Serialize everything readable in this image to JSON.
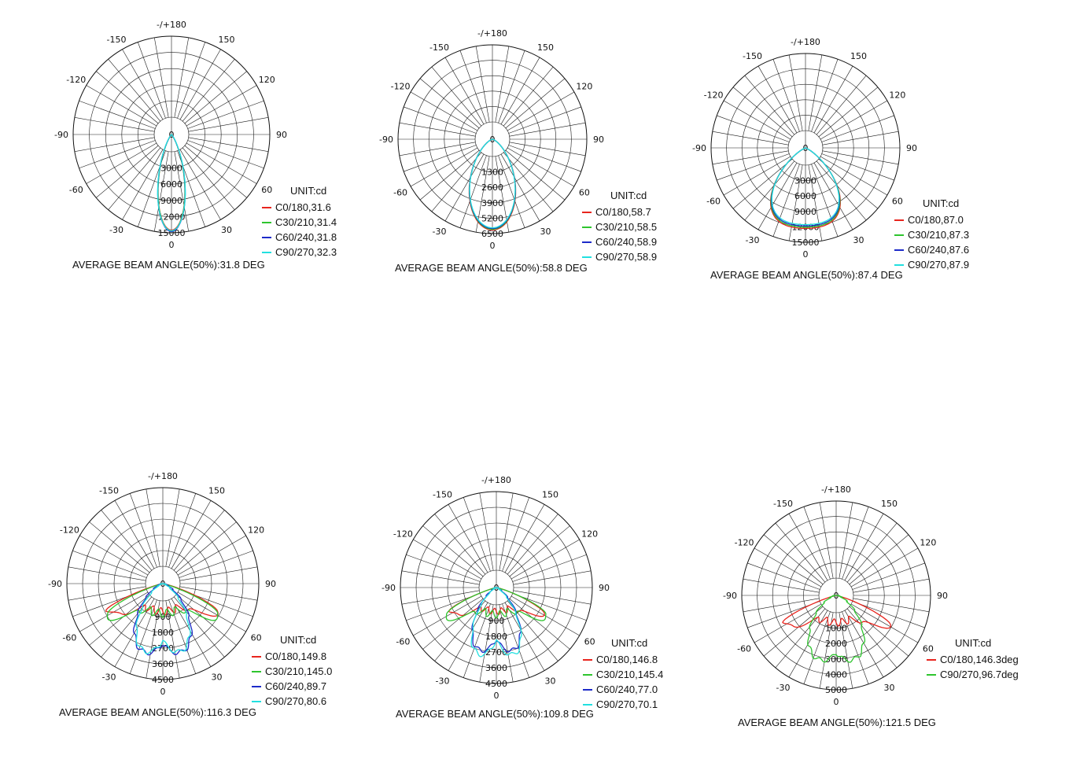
{
  "chart_data": [
    {
      "type": "polar",
      "angle_labels": [
        "-/+180",
        "150",
        "120",
        "90",
        "60",
        "30",
        "0",
        "-30",
        "-60",
        "-90",
        "-120",
        "-150"
      ],
      "zero_label": "0",
      "rmax": 15000,
      "ring_labels": [
        "3000",
        "6000",
        "9000",
        "12000",
        "15000"
      ],
      "unit": "UNIT:cd",
      "avg_beam": "AVERAGE BEAM ANGLE(50%):31.8 DEG",
      "series": [
        {
          "name": "C0/180,31.6",
          "color": "#e8251e",
          "peak": 14600,
          "profile": "narrow",
          "width": 31.6
        },
        {
          "name": "C30/210,31.4",
          "color": "#2ec52e",
          "peak": 14700,
          "profile": "narrow",
          "width": 31.4
        },
        {
          "name": "C60/240,31.8",
          "color": "#1d2bc9",
          "peak": 14800,
          "profile": "narrow",
          "width": 31.8
        },
        {
          "name": "C90/270,32.3",
          "color": "#22e0e0",
          "peak": 14700,
          "profile": "narrow",
          "width": 32.3
        }
      ]
    },
    {
      "type": "polar",
      "angle_labels": [
        "-/+180",
        "150",
        "120",
        "90",
        "60",
        "30",
        "0",
        "-30",
        "-60",
        "-90",
        "-120",
        "-150"
      ],
      "zero_label": "0",
      "rmax": 6500,
      "ring_labels": [
        "1300",
        "2600",
        "3900",
        "5200",
        "6500"
      ],
      "unit": "UNIT:cd",
      "avg_beam": "AVERAGE BEAM ANGLE(50%):58.8 DEG",
      "series": [
        {
          "name": "C0/180,58.7",
          "color": "#e8251e",
          "peak": 6250,
          "profile": "medium",
          "width": 58.7
        },
        {
          "name": "C30/210,58.5",
          "color": "#2ec52e",
          "peak": 6200,
          "profile": "medium",
          "width": 58.5
        },
        {
          "name": "C60/240,58.9",
          "color": "#1d2bc9",
          "peak": 6150,
          "profile": "medium",
          "width": 58.9
        },
        {
          "name": "C90/270,58.9",
          "color": "#22e0e0",
          "peak": 6100,
          "profile": "medium",
          "width": 58.9
        }
      ]
    },
    {
      "type": "polar",
      "angle_labels": [
        "-/+180",
        "150",
        "120",
        "90",
        "60",
        "30",
        "0",
        "-30",
        "-60",
        "-90",
        "-120",
        "-150"
      ],
      "zero_label": "0",
      "rmax": 15000,
      "ring_labels": [
        "3000",
        "6000",
        "9000",
        "12000",
        "15000"
      ],
      "unit": "UNIT:cd",
      "avg_beam": "AVERAGE BEAM ANGLE(50%):87.4 DEG",
      "series": [
        {
          "name": "C0/180,87.0",
          "color": "#e8251e",
          "peak": 12800,
          "profile": "wide",
          "width": 87.0
        },
        {
          "name": "C30/210,87.3",
          "color": "#2ec52e",
          "peak": 12600,
          "profile": "wide",
          "width": 87.3
        },
        {
          "name": "C60/240,87.6",
          "color": "#1d2bc9",
          "peak": 12400,
          "profile": "wide",
          "width": 87.6
        },
        {
          "name": "C90/270,87.9",
          "color": "#22e0e0",
          "peak": 12200,
          "profile": "wide",
          "width": 87.9
        }
      ]
    },
    {
      "type": "polar",
      "angle_labels": [
        "-/+180",
        "150",
        "120",
        "90",
        "60",
        "30",
        "0",
        "-30",
        "-60",
        "-90",
        "-120",
        "-150"
      ],
      "zero_label": "0",
      "rmax": 4500,
      "ring_labels": [
        "900",
        "1800",
        "2700",
        "3600",
        "4500"
      ],
      "unit": "UNIT:cd",
      "avg_beam": "AVERAGE BEAM ANGLE(50%):116.3 DEG",
      "series": [
        {
          "name": "C0/180,149.8",
          "color": "#e8251e",
          "peak": 2900,
          "profile": "bat",
          "width": 149.8
        },
        {
          "name": "C30/210,145.0",
          "color": "#2ec52e",
          "peak": 3100,
          "profile": "bat",
          "width": 145.0
        },
        {
          "name": "C60/240,89.7",
          "color": "#1d2bc9",
          "peak": 3400,
          "profile": "lobe",
          "width": 89.7
        },
        {
          "name": "C90/270,80.6",
          "color": "#22e0e0",
          "peak": 3350,
          "profile": "lobe",
          "width": 80.6
        }
      ]
    },
    {
      "type": "polar",
      "angle_labels": [
        "-/+180",
        "150",
        "120",
        "90",
        "60",
        "30",
        "0",
        "-30",
        "-60",
        "-90",
        "-120",
        "-150"
      ],
      "zero_label": "0",
      "rmax": 4500,
      "ring_labels": [
        "900",
        "1800",
        "2700",
        "3600",
        "4500"
      ],
      "unit": "UNIT:cd",
      "avg_beam": "AVERAGE BEAM ANGLE(50%):109.8 DEG",
      "series": [
        {
          "name": "C0/180,146.8",
          "color": "#e8251e",
          "peak": 2500,
          "profile": "bat",
          "width": 146.8
        },
        {
          "name": "C30/210,145.4",
          "color": "#2ec52e",
          "peak": 2800,
          "profile": "bat",
          "width": 145.4
        },
        {
          "name": "C60/240,77.0",
          "color": "#1d2bc9",
          "peak": 3100,
          "profile": "lobe",
          "width": 77.0
        },
        {
          "name": "C90/270,70.1",
          "color": "#22e0e0",
          "peak": 3300,
          "profile": "lobe",
          "width": 70.1
        }
      ]
    },
    {
      "type": "polar",
      "angle_labels": [
        "-/+180",
        "150",
        "120",
        "90",
        "60",
        "30",
        "0",
        "-30",
        "-60",
        "-90",
        "-120",
        "-150"
      ],
      "zero_label": "0",
      "rmax": 5000,
      "ring_labels": [
        "1000",
        "2000",
        "3000",
        "4000",
        "5000"
      ],
      "unit": "UNIT:cd",
      "avg_beam": "AVERAGE BEAM ANGLE(50%):121.5 DEG",
      "series": [
        {
          "name": "C0/180,146.3deg",
          "color": "#e8251e",
          "peak": 3200,
          "profile": "bat",
          "width": 146.3
        },
        {
          "name": "C90/270,96.7deg",
          "color": "#2ec52e",
          "peak": 3600,
          "profile": "lobe",
          "width": 96.7
        }
      ]
    }
  ]
}
